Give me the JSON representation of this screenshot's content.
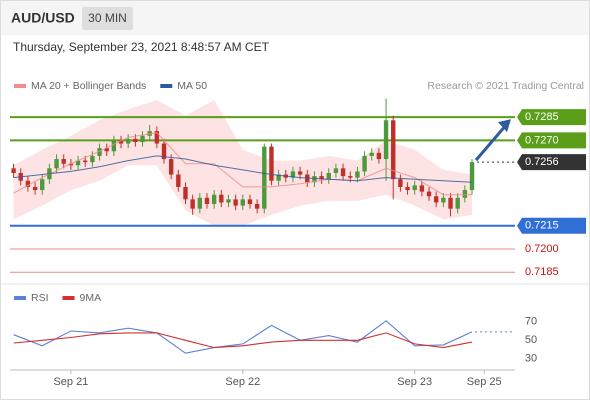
{
  "header": {
    "symbol": "AUD/USD",
    "interval": "30 MIN",
    "datetime": "Thursday, September 23, 2021 8:48:57 AM CET"
  },
  "chart_data": [
    {
      "type": "candlestick",
      "credit": "Research © 2021 Trading Central",
      "up_color": "#4d9a3c",
      "down_color": "#c0302a",
      "xlim": [
        -0.5,
        70
      ],
      "ylim": [
        0.718,
        0.7298
      ],
      "open": [
        0.7252,
        0.7249,
        0.7244,
        0.724,
        0.7238,
        0.7245,
        0.7252,
        0.7258,
        0.7255,
        0.7254,
        0.7257,
        0.7256,
        0.726,
        0.7265,
        0.7263,
        0.727,
        0.7268,
        0.7271,
        0.7269,
        0.7273,
        0.7276,
        0.7268,
        0.7258,
        0.7248,
        0.724,
        0.7232,
        0.7226,
        0.7233,
        0.7229,
        0.7235,
        0.723,
        0.7232,
        0.7228,
        0.7232,
        0.7229,
        0.7226,
        0.7266,
        0.7244,
        0.7248,
        0.7246,
        0.725,
        0.7248,
        0.7243,
        0.7247,
        0.7245,
        0.7249,
        0.7252,
        0.7247,
        0.7246,
        0.725,
        0.726,
        0.7262,
        0.7258,
        0.7283,
        0.7245,
        0.724,
        0.7238,
        0.7241,
        0.7237,
        0.7234,
        0.723,
        0.7233,
        0.7226,
        0.7233,
        0.7238
      ],
      "high": [
        0.7255,
        0.7252,
        0.7247,
        0.7243,
        0.7248,
        0.7255,
        0.7261,
        0.7261,
        0.7258,
        0.726,
        0.726,
        0.7263,
        0.7268,
        0.7268,
        0.7273,
        0.7273,
        0.7274,
        0.7274,
        0.7276,
        0.728,
        0.7279,
        0.7271,
        0.7261,
        0.7251,
        0.7243,
        0.7235,
        0.7236,
        0.7236,
        0.7238,
        0.7238,
        0.7235,
        0.7235,
        0.7235,
        0.7235,
        0.7232,
        0.7268,
        0.7268,
        0.7251,
        0.7251,
        0.7253,
        0.7253,
        0.7251,
        0.725,
        0.725,
        0.7252,
        0.7255,
        0.7255,
        0.725,
        0.7253,
        0.7263,
        0.7265,
        0.7265,
        0.7297,
        0.7286,
        0.7248,
        0.7243,
        0.7244,
        0.7244,
        0.724,
        0.7237,
        0.7236,
        0.7236,
        0.7236,
        0.7241,
        0.7258
      ],
      "low": [
        0.7246,
        0.7241,
        0.7237,
        0.7235,
        0.7235,
        0.7242,
        0.7249,
        0.7252,
        0.7251,
        0.7251,
        0.7253,
        0.7253,
        0.7257,
        0.726,
        0.726,
        0.7265,
        0.7265,
        0.7266,
        0.7266,
        0.727,
        0.7265,
        0.7255,
        0.7245,
        0.7237,
        0.7229,
        0.7222,
        0.7223,
        0.7226,
        0.7226,
        0.7227,
        0.7227,
        0.7225,
        0.7225,
        0.7226,
        0.7223,
        0.7223,
        0.7241,
        0.7241,
        0.7243,
        0.7243,
        0.7245,
        0.724,
        0.724,
        0.7242,
        0.7242,
        0.7246,
        0.7244,
        0.7243,
        0.7243,
        0.7247,
        0.7257,
        0.7255,
        0.7244,
        0.7232,
        0.7237,
        0.7235,
        0.7235,
        0.7234,
        0.7231,
        0.7227,
        0.7227,
        0.7221,
        0.7223,
        0.723,
        0.7235
      ],
      "close": [
        0.7249,
        0.7244,
        0.724,
        0.7238,
        0.7245,
        0.7252,
        0.7258,
        0.7255,
        0.7254,
        0.7257,
        0.7256,
        0.726,
        0.7265,
        0.7263,
        0.727,
        0.7268,
        0.7271,
        0.7269,
        0.7273,
        0.7276,
        0.7268,
        0.7258,
        0.7248,
        0.724,
        0.7232,
        0.7226,
        0.7233,
        0.7229,
        0.7235,
        0.723,
        0.7232,
        0.7228,
        0.7232,
        0.7229,
        0.7226,
        0.7266,
        0.7244,
        0.7248,
        0.7246,
        0.725,
        0.7248,
        0.7243,
        0.7247,
        0.7245,
        0.7249,
        0.7252,
        0.7247,
        0.7246,
        0.725,
        0.726,
        0.7262,
        0.7258,
        0.7283,
        0.7245,
        0.724,
        0.7238,
        0.7241,
        0.7237,
        0.7234,
        0.723,
        0.7233,
        0.7226,
        0.7233,
        0.7238,
        0.7256
      ],
      "series": [
        {
          "name": "MA 20 + Bollinger Bands",
          "color": "#f28b8b",
          "band_color": "#fde3e3",
          "x": [
            0,
            4,
            8,
            12,
            16,
            20,
            24,
            28,
            32,
            36,
            40,
            44,
            48,
            52,
            56,
            60,
            64
          ],
          "values": [
            0.7236,
            0.7246,
            0.7255,
            0.7263,
            0.7272,
            0.7275,
            0.7255,
            0.7255,
            0.724,
            0.724,
            0.7242,
            0.7245,
            0.7244,
            0.7252,
            0.7246,
            0.7235,
            0.7235
          ],
          "upper": [
            0.7254,
            0.7264,
            0.7273,
            0.7283,
            0.729,
            0.7296,
            0.7286,
            0.7296,
            0.7264,
            0.7257,
            0.7257,
            0.726,
            0.7257,
            0.727,
            0.7264,
            0.7251,
            0.7248
          ],
          "lower": [
            0.7219,
            0.7228,
            0.7238,
            0.7244,
            0.7254,
            0.7254,
            0.7225,
            0.7215,
            0.7215,
            0.7222,
            0.7228,
            0.7231,
            0.7231,
            0.7235,
            0.7228,
            0.7219,
            0.7222
          ]
        },
        {
          "name": "MA 50",
          "color": "#2e5c9e",
          "x": [
            0,
            4,
            8,
            12,
            16,
            20,
            24,
            28,
            32,
            36,
            40,
            44,
            48,
            52,
            56,
            60,
            64
          ],
          "values": [
            0.7246,
            0.7248,
            0.725,
            0.7253,
            0.7257,
            0.726,
            0.7258,
            0.7254,
            0.7251,
            0.7248,
            0.7246,
            0.7245,
            0.7244,
            0.7246,
            0.7245,
            0.7244,
            0.7243
          ]
        }
      ],
      "levels": [
        {
          "value": 0.7285,
          "label": "0.7285",
          "color": "#5a9e1a",
          "boxed": true,
          "arrow": true
        },
        {
          "value": 0.727,
          "label": "0.7270",
          "color": "#5a9e1a",
          "boxed": true
        },
        {
          "value": 0.7256,
          "label": "0.7256",
          "color": "#333333",
          "boxed": true,
          "dotted": true
        },
        {
          "value": 0.7215,
          "label": "0.7215",
          "color": "#2f6fd6",
          "boxed": true
        },
        {
          "value": 0.72,
          "label": "0.7200",
          "color": "#e58a8a",
          "text_color": "#cc1111"
        },
        {
          "value": 0.7185,
          "label": "0.7185",
          "color": "#e58a8a",
          "text_color": "#cc1111"
        }
      ]
    },
    {
      "type": "line",
      "xlim": [
        -0.5,
        70
      ],
      "ylim": [
        20,
        100
      ],
      "yticks": [
        30,
        50,
        70
      ],
      "xticks": [
        {
          "value": 8,
          "label": "Sep 21"
        },
        {
          "value": 32,
          "label": "Sep 22"
        },
        {
          "value": 56,
          "label": "Sep 23"
        },
        {
          "value": 65.7,
          "label": "Sep 25"
        }
      ],
      "series": [
        {
          "name": "RSI",
          "color": "#5b80d8",
          "x": [
            0,
            4,
            8,
            12,
            16,
            20,
            24,
            28,
            32,
            36,
            40,
            44,
            48,
            52,
            56,
            60,
            64
          ],
          "values": [
            56,
            44,
            60,
            58,
            63,
            58,
            36,
            42,
            46,
            66,
            50,
            55,
            48,
            71,
            44,
            45,
            59
          ]
        },
        {
          "name": "9MA",
          "color": "#d32f2f",
          "x": [
            0,
            4,
            8,
            12,
            16,
            20,
            24,
            28,
            32,
            36,
            40,
            44,
            48,
            52,
            56,
            60,
            64
          ],
          "values": [
            47,
            50,
            53,
            57,
            58,
            58,
            50,
            42,
            44,
            48,
            50,
            50,
            50,
            58,
            46,
            42,
            48
          ]
        }
      ]
    }
  ]
}
